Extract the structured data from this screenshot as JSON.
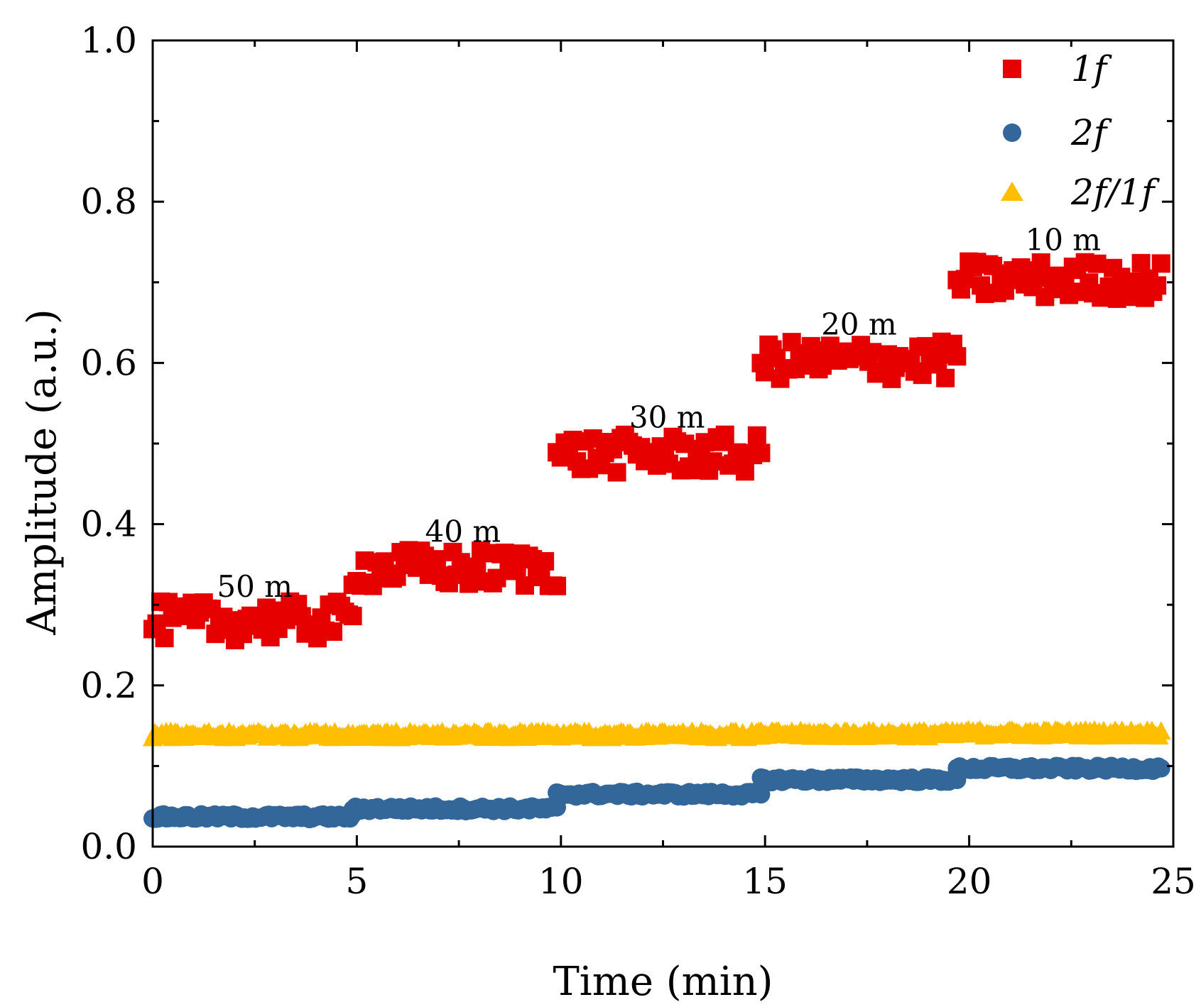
{
  "chart_data": {
    "type": "scatter",
    "title": "",
    "xlabel": "Time (min)",
    "ylabel": "Amplitude (a.u.)",
    "xlim": [
      0,
      25
    ],
    "ylim": [
      0.0,
      1.0
    ],
    "x_ticks": [
      0,
      5,
      10,
      15,
      20,
      25
    ],
    "x_tick_labels": [
      "0",
      "5",
      "10",
      "15",
      "20",
      "25"
    ],
    "y_ticks": [
      0.0,
      0.2,
      0.4,
      0.6,
      0.8,
      1.0
    ],
    "y_tick_labels": [
      "0.0",
      "0.2",
      "0.4",
      "0.6",
      "0.8",
      "1.0"
    ],
    "grid": false,
    "legend_position": "top-right",
    "segments": [
      {
        "x_start": 0.0,
        "x_end": 4.9
      },
      {
        "x_start": 4.9,
        "x_end": 9.9
      },
      {
        "x_start": 9.9,
        "x_end": 14.9
      },
      {
        "x_start": 14.9,
        "x_end": 19.7
      },
      {
        "x_start": 19.7,
        "x_end": 24.7
      }
    ],
    "series": [
      {
        "name": "1f",
        "marker": "square",
        "color": "#e60000",
        "values": [
          0.28,
          0.345,
          0.487,
          0.603,
          0.703
        ]
      },
      {
        "name": "2f",
        "marker": "circle",
        "color": "#336699",
        "values": [
          0.037,
          0.047,
          0.065,
          0.083,
          0.097
        ]
      },
      {
        "name": "2f/1f",
        "marker": "triangle",
        "color": "#ffbf00",
        "values": [
          0.139,
          0.139,
          0.139,
          0.14,
          0.141
        ]
      }
    ],
    "annotations": [
      {
        "text": "50 m",
        "x": 2.5,
        "y": 0.31
      },
      {
        "text": "40 m",
        "x": 7.6,
        "y": 0.378
      },
      {
        "text": "30 m",
        "x": 12.6,
        "y": 0.52
      },
      {
        "text": "20 m",
        "x": 17.3,
        "y": 0.635
      },
      {
        "text": "10 m",
        "x": 22.3,
        "y": 0.74
      }
    ]
  }
}
